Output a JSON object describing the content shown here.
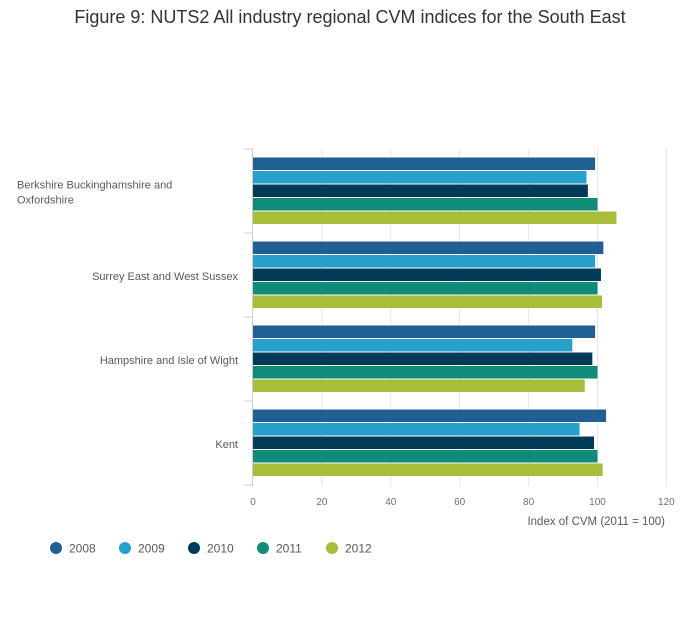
{
  "chart_data": {
    "type": "bar",
    "orientation": "horizontal",
    "title": "Figure 9: NUTS2 All industry regional CVM indices for the South East",
    "xlabel": "Index of CVM (2011 = 100)",
    "ylabel": "",
    "xlim": [
      0,
      120
    ],
    "ticks": [
      0,
      20,
      40,
      60,
      80,
      100,
      120
    ],
    "grid": true,
    "legend_position": "bottom-left",
    "categories": [
      [
        "Berkshire Buckinghamshire and",
        "Oxfordshire"
      ],
      [
        "Surrey East and West Sussex"
      ],
      [
        "Hampshire and Isle of Wight"
      ],
      [
        "Kent"
      ]
    ],
    "series": [
      {
        "name": "2008",
        "color": "#206095",
        "values": [
          99.3,
          101.7,
          99.3,
          102.5
        ]
      },
      {
        "name": "2009",
        "color": "#27a0cc",
        "values": [
          96.8,
          99.3,
          92.7,
          94.8
        ]
      },
      {
        "name": "2010",
        "color": "#003c57",
        "values": [
          97.2,
          101.0,
          98.5,
          99.0
        ]
      },
      {
        "name": "2011",
        "color": "#118c7b",
        "values": [
          100.0,
          100.0,
          100.0,
          100.0
        ]
      },
      {
        "name": "2012",
        "color": "#a8bd3a",
        "values": [
          105.5,
          101.3,
          96.3,
          101.5
        ]
      }
    ]
  }
}
